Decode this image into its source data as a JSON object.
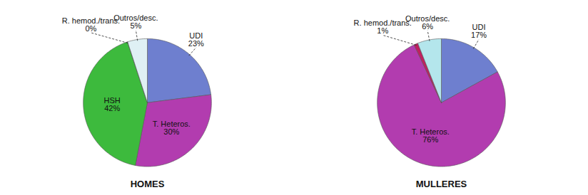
{
  "chart_data": [
    {
      "type": "pie",
      "title": "HOMES",
      "categories": [
        "UDI",
        "T. Heteros.",
        "HSH",
        "R. hemod./trans.",
        "Outros/desc."
      ],
      "values": [
        23,
        30,
        42,
        0,
        5
      ],
      "value_labels": [
        "23%",
        "30%",
        "42%",
        "0%",
        "5%"
      ],
      "colors": [
        "#6e7fcf",
        "#b23caf",
        "#3dba3d",
        "#c02060",
        "#dff0f4"
      ],
      "data_labels": true
    },
    {
      "type": "pie",
      "title": "MULLERES",
      "categories": [
        "UDI",
        "T. Heteros.",
        "R. hemod./trans.",
        "Outros/desc."
      ],
      "values": [
        17,
        76,
        1,
        6
      ],
      "value_labels": [
        "17%",
        "76%",
        "1%",
        "6%"
      ],
      "colors": [
        "#6e7fcf",
        "#b23caf",
        "#c02060",
        "#b4e6ec"
      ],
      "data_labels": true
    }
  ]
}
